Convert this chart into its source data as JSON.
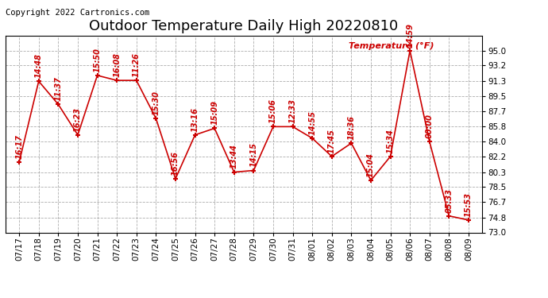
{
  "title": "Outdoor Temperature Daily High 20220810",
  "copyright": "Copyright 2022 Cartronics.com",
  "legend_label": "Temperature (°F)",
  "x_labels": [
    "07/17",
    "07/18",
    "07/19",
    "07/20",
    "07/21",
    "07/22",
    "07/23",
    "07/24",
    "07/25",
    "07/26",
    "07/27",
    "07/28",
    "07/29",
    "07/30",
    "07/31",
    "08/01",
    "08/02",
    "08/03",
    "08/04",
    "08/05",
    "08/06",
    "08/07",
    "08/08",
    "08/09"
  ],
  "y_values": [
    81.5,
    91.3,
    88.5,
    84.8,
    92.0,
    91.4,
    91.4,
    86.8,
    79.5,
    84.8,
    85.6,
    80.3,
    80.5,
    85.8,
    85.8,
    84.4,
    82.2,
    83.8,
    79.3,
    82.2,
    95.0,
    84.0,
    75.0,
    74.5
  ],
  "point_labels": [
    "16:17",
    "14:48",
    "11:37",
    "16:23",
    "15:50",
    "16:08",
    "11:26",
    "15:30",
    "16:56",
    "13:16",
    "15:09",
    "13:44",
    "14:15",
    "15:06",
    "12:33",
    "14:55",
    "17:45",
    "18:36",
    "15:04",
    "15:34",
    "14:59",
    "00:00",
    "05:33",
    "15:53"
  ],
  "line_color": "#cc0000",
  "marker_color": "#cc0000",
  "background_color": "#ffffff",
  "grid_color": "#999999",
  "ylim_min": 73.0,
  "ylim_max": 96.8,
  "yticks": [
    73.0,
    74.8,
    76.7,
    78.5,
    80.3,
    82.2,
    84.0,
    85.8,
    87.7,
    89.5,
    91.3,
    93.2,
    95.0
  ],
  "title_fontsize": 13,
  "label_fontsize": 7,
  "copyright_fontsize": 7.5,
  "tick_fontsize": 7.5
}
